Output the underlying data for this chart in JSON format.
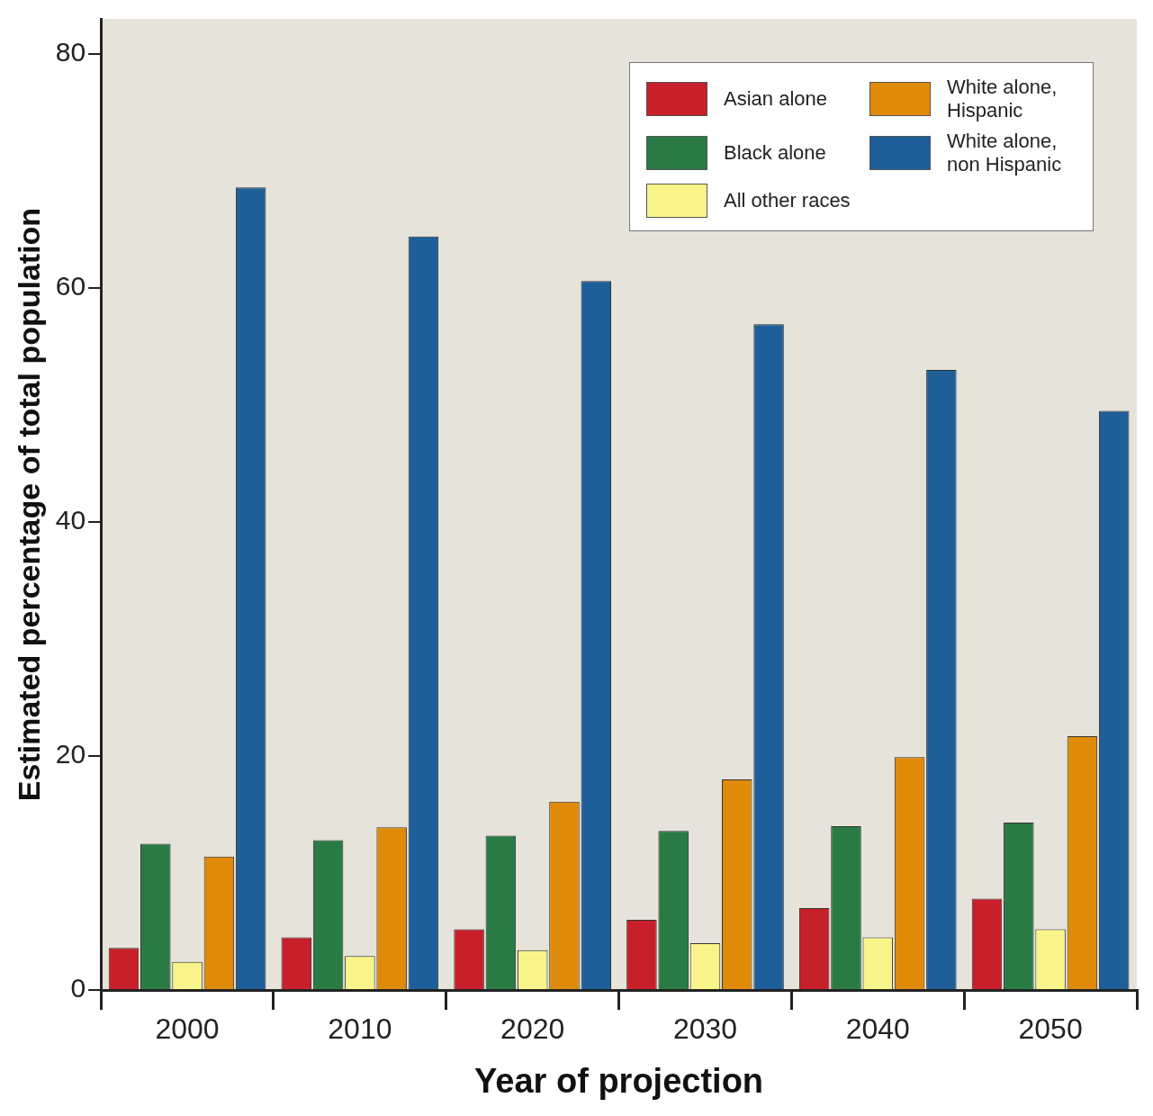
{
  "chart_data": {
    "type": "bar",
    "xlabel": "Year of projection",
    "ylabel": "Estimated percentage of total population",
    "categories": [
      "2000",
      "2010",
      "2020",
      "2030",
      "2040",
      "2050"
    ],
    "series": [
      {
        "name": "Asian alone",
        "color": "#c8202a",
        "values": [
          3.6,
          4.5,
          5.2,
          6.0,
          7.0,
          7.8
        ]
      },
      {
        "name": "Black alone",
        "color": "#2a7a45",
        "values": [
          12.5,
          12.8,
          13.2,
          13.6,
          14.0,
          14.3
        ]
      },
      {
        "name": "All other races",
        "color": "#f8f48a",
        "values": [
          2.4,
          2.9,
          3.4,
          4.0,
          4.5,
          5.2
        ]
      },
      {
        "name": "White alone, Hispanic",
        "color": "#e08a0a",
        "values": [
          11.4,
          13.9,
          16.1,
          18.0,
          19.9,
          21.7
        ]
      },
      {
        "name": "White alone, non Hispanic",
        "color": "#1e5f9a",
        "values": [
          68.6,
          64.4,
          60.6,
          56.9,
          53.0,
          49.5
        ]
      }
    ],
    "ylim": [
      0,
      83
    ],
    "yticks": [
      0,
      20,
      40,
      60,
      80
    ],
    "grid": false,
    "legend": "top right"
  }
}
